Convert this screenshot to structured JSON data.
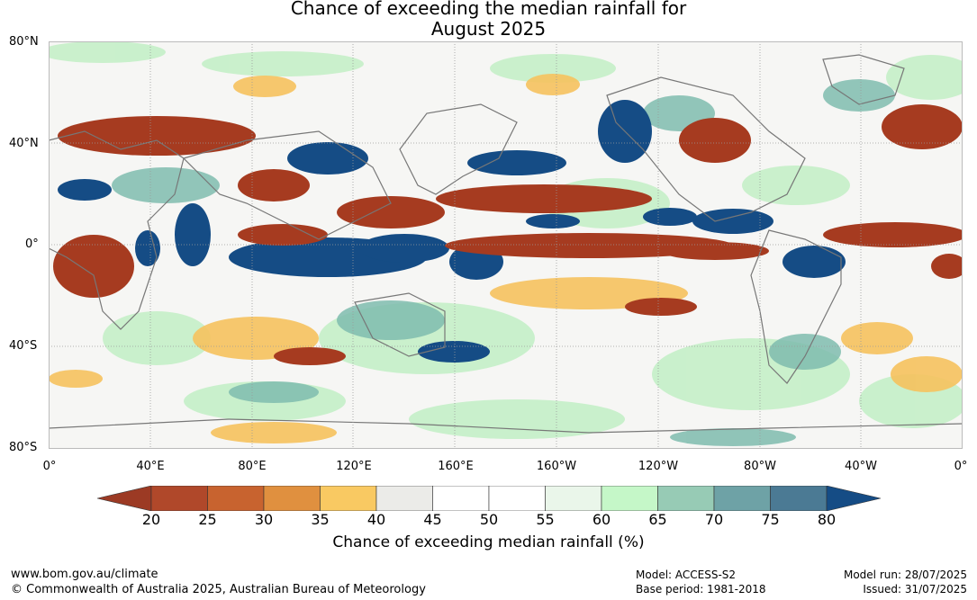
{
  "title_line1": "Chance of exceeding the median rainfall for",
  "title_line2": "August 2025",
  "lat_labels": [
    "80°N",
    "40°N",
    "0°",
    "40°S",
    "80°S"
  ],
  "lon_labels": [
    "0°",
    "40°E",
    "80°E",
    "120°E",
    "160°E",
    "160°W",
    "120°W",
    "80°W",
    "40°W",
    "0°"
  ],
  "colorbar": {
    "ticks": [
      "20",
      "25",
      "30",
      "35",
      "40",
      "45",
      "50",
      "55",
      "60",
      "65",
      "70",
      "75",
      "80"
    ],
    "colors": [
      "#b0482a",
      "#c8632f",
      "#e0903f",
      "#f9c962",
      "#ebebe8",
      "#ffffff",
      "#ffffff",
      "#eaf6ea",
      "#c5f7c8",
      "#97cbb5",
      "#6ea2a6",
      "#4b7a94"
    ],
    "low_extend_color": "#9c3a24",
    "high_extend_color": "#154c85",
    "label": "Chance of exceeding median rainfall (%)"
  },
  "footer": {
    "url": "www.bom.gov.au/climate",
    "copyright": "© Commonwealth of Australia 2025, Australian Bureau of Meteorology",
    "model": "Model: ACCESS-S2",
    "base_period": "Base period: 1981-2018",
    "model_run": "Model run: 28/07/2025",
    "issued": "Issued: 31/07/2025"
  }
}
